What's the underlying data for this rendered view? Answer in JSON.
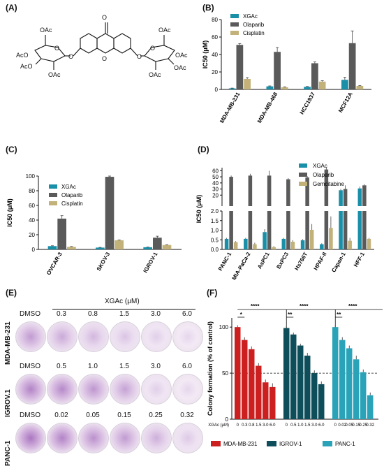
{
  "panels": {
    "A": {
      "label": "(A)"
    },
    "B": {
      "label": "(B)"
    },
    "C": {
      "label": "(C)"
    },
    "D": {
      "label": "(D)"
    },
    "E": {
      "label": "(E)"
    },
    "F": {
      "label": "(F)"
    }
  },
  "structure": {
    "carbonyl": "O",
    "left_sugar": [
      "OAc",
      "AcO",
      "AcO",
      "OAc"
    ],
    "right_sugar": [
      "OAc",
      "OAc",
      "OAc",
      "OAc"
    ],
    "ring_o": [
      "O",
      "O",
      "O",
      "O",
      "O"
    ]
  },
  "colors": {
    "xgac": "#1a8fa8",
    "olaparib": "#5a5a5a",
    "cisplatin": "#c2b27a",
    "mda": "#cc1f1f",
    "igrov": "#0e4d5a",
    "panc": "#2aa3b8"
  },
  "chart_data": [
    {
      "panel": "B",
      "type": "bar",
      "ylabel": "IC50 (μM)",
      "ylim": [
        0,
        80
      ],
      "yticks": [
        "0",
        "20",
        "40",
        "60",
        "80"
      ],
      "categories": [
        "MDA-MB-231",
        "MDA-MB-468",
        "HCC1937",
        "MCF12A"
      ],
      "series": [
        {
          "name": "XGAc",
          "values": [
            1.2,
            3.5,
            3.0,
            11.0
          ],
          "errors": [
            0.3,
            0.5,
            0.4,
            3.0
          ]
        },
        {
          "name": "Olaparib",
          "values": [
            51,
            43,
            30,
            53
          ],
          "errors": [
            1.5,
            5,
            1.5,
            14
          ]
        },
        {
          "name": "Cisplatin",
          "values": [
            12,
            2.5,
            9,
            4
          ],
          "errors": [
            1.5,
            0.5,
            1,
            0.5
          ]
        }
      ]
    },
    {
      "panel": "C",
      "type": "bar",
      "ylabel": "IC50 (μM)",
      "ylim": [
        0,
        100
      ],
      "yticks": [
        "0",
        "20",
        "40",
        "60",
        "80",
        "100"
      ],
      "categories": [
        "OVCAR-3",
        "SKOV-3",
        "IGROV-1"
      ],
      "series": [
        {
          "name": "XGAc",
          "values": [
            4.5,
            2.5,
            3.0
          ],
          "errors": [
            0.5,
            0.3,
            0.3
          ]
        },
        {
          "name": "Olaparib",
          "values": [
            42,
            99,
            16
          ],
          "errors": [
            4,
            1,
            2
          ]
        },
        {
          "name": "Cisplatin",
          "values": [
            3.5,
            12.5,
            6
          ],
          "errors": [
            0.5,
            0.5,
            0.5
          ]
        }
      ]
    },
    {
      "panel": "D",
      "type": "bar",
      "ylabel": "IC50 (μM)",
      "ylim_lower": [
        0,
        2.0
      ],
      "ylim_upper": [
        2,
        65
      ],
      "yticks_lower": [
        "0.0",
        "0.5",
        "1.0",
        "1.5",
        "2.0"
      ],
      "yticks_upper": [
        "20",
        "30",
        "40",
        "50",
        "60"
      ],
      "categories": [
        "PANC-1",
        "MIA-PaCa-2",
        "AsPC1",
        "BxPC3",
        "Hs766T",
        "HPAF-II",
        "Capan-1",
        "HFF-1"
      ],
      "series": [
        {
          "name": "XGAc",
          "values": [
            0.55,
            0.55,
            0.9,
            0.55,
            0.48,
            0.27,
            28,
            31
          ],
          "errors": [
            0.05,
            0.05,
            0.15,
            0.05,
            0.05,
            0.05,
            2,
            3
          ]
        },
        {
          "name": "Olaparib",
          "values": [
            50,
            52,
            52,
            46,
            49,
            62,
            30,
            36
          ],
          "errors": [
            2,
            3,
            8,
            2,
            2,
            4,
            6,
            2
          ]
        },
        {
          "name": "Gemcitabine",
          "values": [
            0.38,
            0.27,
            0.12,
            0.4,
            1.02,
            1.12,
            0.45,
            0.55
          ],
          "errors": [
            0.05,
            0.08,
            0.05,
            0.08,
            0.3,
            0.6,
            0.15,
            0.05
          ]
        }
      ]
    },
    {
      "panel": "F",
      "type": "bar",
      "ylabel": "Colony formation (% of control)",
      "ylim": [
        0,
        110
      ],
      "yticks": [
        "0",
        "50",
        "100"
      ],
      "reference_line": 50,
      "xaxis_prefix": "XGAc (μM)",
      "groups": [
        {
          "name": "MDA-MB-231",
          "doses": [
            "0",
            "0.3",
            "0.8",
            "1.5",
            "3.0",
            "6.0"
          ],
          "values": [
            100,
            86,
            76,
            58,
            40,
            35
          ],
          "errors": [
            2,
            3,
            3,
            3,
            3,
            4
          ]
        },
        {
          "name": "IGROV-1",
          "doses": [
            "0",
            "0.5",
            "1.0",
            "1.5",
            "3.0",
            "6.0"
          ],
          "values": [
            99,
            92,
            80,
            69,
            50,
            38
          ],
          "errors": [
            2,
            2,
            2,
            3,
            3,
            3
          ]
        },
        {
          "name": "PANC-1",
          "doses": [
            "0",
            "0.02",
            "0.05",
            "0.15",
            "0.25",
            "0.32"
          ],
          "values": [
            100,
            86,
            77,
            65,
            51,
            26
          ],
          "errors": [
            2,
            3,
            3,
            4,
            3,
            3
          ]
        }
      ],
      "significance": [
        {
          "group": 0,
          "marks": [
            "****",
            "*"
          ]
        },
        {
          "group": 1,
          "marks": [
            "****",
            "**"
          ]
        },
        {
          "group": 2,
          "marks": [
            "****",
            "**"
          ]
        }
      ]
    }
  ],
  "assay": {
    "header": "XGAc (μM)",
    "rows": [
      {
        "cell": "MDA-MB-231",
        "doses": [
          "DMSO",
          "0.3",
          "0.8",
          "1.5",
          "3.0",
          "6.0"
        ],
        "density": [
          0.55,
          0.45,
          0.35,
          0.25,
          0.15,
          0.1
        ]
      },
      {
        "cell": "IGROV.1",
        "doses": [
          "DMSO",
          "0.5",
          "1.0",
          "1.5",
          "3.0",
          "6.0"
        ],
        "density": [
          0.75,
          0.7,
          0.6,
          0.5,
          0.15,
          0.1
        ]
      },
      {
        "cell": "PANC-1",
        "doses": [
          "DMSO",
          "0.02",
          "0.05",
          "0.15",
          "0.25",
          "0.32"
        ],
        "density": [
          0.85,
          0.75,
          0.65,
          0.55,
          0.4,
          0.2
        ]
      }
    ]
  }
}
